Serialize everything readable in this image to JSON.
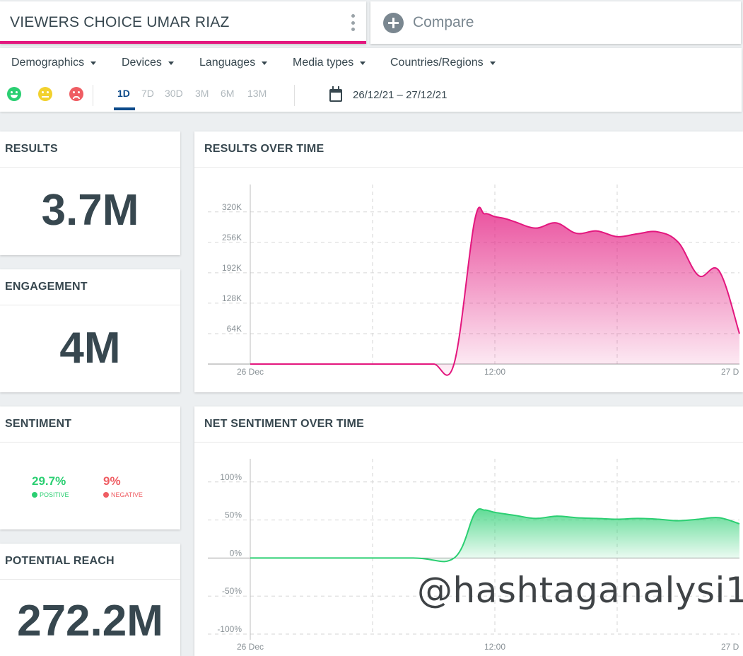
{
  "query": {
    "title": "VIEWERS CHOICE UMAR RIAZ"
  },
  "compare": {
    "label": "Compare"
  },
  "filters": {
    "dropdowns": [
      "Demographics",
      "Devices",
      "Languages",
      "Media types",
      "Countries/Regions"
    ],
    "ranges": [
      "1D",
      "7D",
      "30D",
      "3M",
      "6M",
      "13M"
    ],
    "active_range": "1D",
    "date_range": "26/12/21 – 27/12/21"
  },
  "cards": {
    "results": {
      "title": "RESULTS",
      "value": "3.7M"
    },
    "engagement": {
      "title": "ENGAGEMENT",
      "value": "4M"
    },
    "sentiment": {
      "title": "SENTIMENT",
      "positive": "29.7%",
      "positive_label": "POSITIVE",
      "negative": "9%",
      "negative_label": "NEGATIVE"
    },
    "reach": {
      "title": "POTENTIAL REACH",
      "value": "272.2M"
    }
  },
  "chart_data": [
    {
      "type": "area",
      "title": "RESULTS OVER TIME",
      "x_tick_labels": [
        "26 Dec",
        "12:00",
        "27 D"
      ],
      "y_tick_labels": [
        "64K",
        "128K",
        "192K",
        "256K",
        "320K"
      ],
      "y_ticks": [
        64000,
        128000,
        192000,
        256000,
        320000
      ],
      "ylim": [
        0,
        345000
      ],
      "x_unit": "hours since 26 Dec 00:00",
      "x": [
        0,
        2,
        4,
        6,
        8,
        9,
        10,
        11,
        11.5,
        12,
        12.5,
        13,
        14,
        15,
        16,
        17,
        18,
        19,
        20,
        21,
        22,
        23,
        24
      ],
      "values": [
        0,
        0,
        0,
        0,
        0,
        0,
        800,
        300000,
        316000,
        310000,
        306000,
        299000,
        286000,
        297000,
        275000,
        280000,
        268000,
        274000,
        278000,
        256000,
        186000,
        196000,
        64000
      ],
      "color": "#e3177e",
      "grid": true
    },
    {
      "type": "area",
      "title": "NET SENTIMENT OVER TIME",
      "x_tick_labels": [
        "26 Dec",
        "12:00",
        "27 D"
      ],
      "y_tick_labels": [
        "100%",
        "50%",
        "0%",
        "-50%",
        "-100%"
      ],
      "y_ticks": [
        100,
        50,
        0,
        -50,
        -100
      ],
      "ylim": [
        -100,
        110
      ],
      "x_unit": "hours since 26 Dec 00:00",
      "x": [
        0,
        4,
        8,
        10,
        11,
        11.5,
        12,
        13,
        14,
        15,
        16,
        17,
        18,
        19,
        20,
        21,
        22,
        23,
        24
      ],
      "values": [
        0,
        0,
        0,
        0,
        58,
        63,
        60,
        56,
        52,
        55,
        53,
        52,
        51,
        52,
        51,
        49,
        51,
        53,
        45
      ],
      "color": "#2bcf72",
      "grid": true
    }
  ],
  "watermark": "@hashtaganalysi1"
}
